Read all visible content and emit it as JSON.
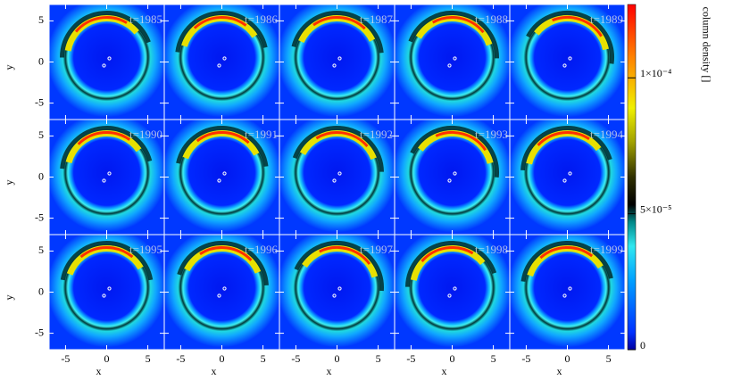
{
  "chart_data": {
    "type": "image-grid",
    "panels": [
      {
        "label": "t=1985"
      },
      {
        "label": "t=1986"
      },
      {
        "label": "t=1987"
      },
      {
        "label": "t=1988"
      },
      {
        "label": "t=1989"
      },
      {
        "label": "t=1990"
      },
      {
        "label": "t=1991"
      },
      {
        "label": "t=1992"
      },
      {
        "label": "t=1993"
      },
      {
        "label": "t=1994"
      },
      {
        "label": "t=1995"
      },
      {
        "label": "t=1996"
      },
      {
        "label": "t=1997"
      },
      {
        "label": "t=1998"
      },
      {
        "label": "t=1999"
      }
    ],
    "xlabel": "x",
    "ylabel": "y",
    "xlim": [
      -7,
      7
    ],
    "ylim": [
      -7,
      7
    ],
    "xticks": [
      -5,
      0,
      5
    ],
    "yticks": [
      -5,
      0,
      5
    ],
    "colorbar": {
      "label": "column density []",
      "lim": [
        0,
        0.000127
      ],
      "ticks": [
        0,
        {
          "value": 5e-05,
          "label": "5×10⁻⁵"
        },
        {
          "value": 0.0001,
          "label": "1×10⁻⁴"
        }
      ]
    }
  }
}
